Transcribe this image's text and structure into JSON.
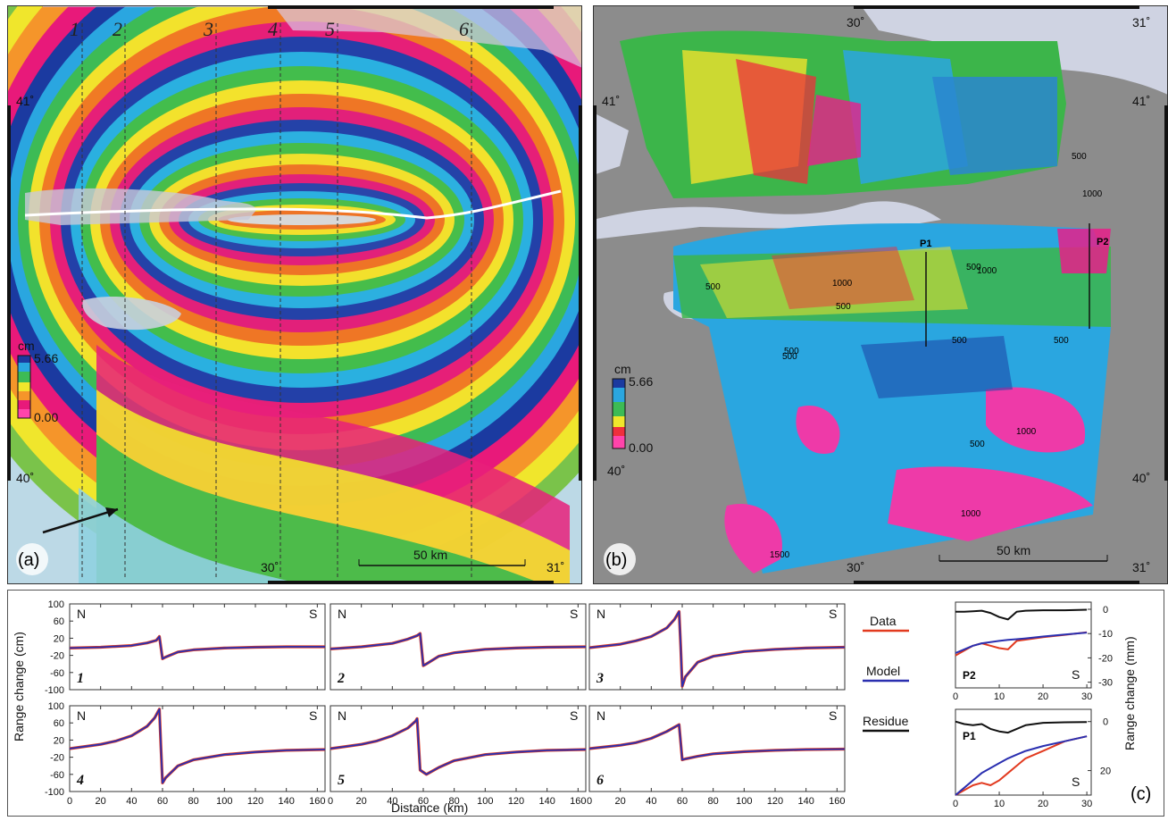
{
  "panel_a": {
    "label": "(a)",
    "profile_lines": [
      "1",
      "2",
      "3",
      "4",
      "5",
      "6"
    ],
    "lat_labels": [
      "41˚",
      "40˚"
    ],
    "lon_labels": [
      "30˚",
      "31˚"
    ],
    "colorbar": {
      "unit": "cm",
      "max": "5.66",
      "min": "0.00"
    },
    "scale_bar": "50 km"
  },
  "panel_b": {
    "label": "(b)",
    "lat_labels": [
      "41˚",
      "41˚",
      "40˚",
      "40˚"
    ],
    "lon_labels": [
      "30˚",
      "31˚",
      "30˚",
      "31˚"
    ],
    "colorbar": {
      "unit": "cm",
      "max": "5.66",
      "min": "0.00"
    },
    "scale_bar": "50 km",
    "profiles": [
      "P1",
      "P2"
    ],
    "contours": [
      "500",
      "1000",
      "500",
      "500",
      "1000",
      "500",
      "500",
      "1000",
      "500",
      "500",
      "1000",
      "500",
      "1000",
      "1500",
      "500"
    ]
  },
  "panel_c": {
    "label": "(c)",
    "ylabel": "Range change  (cm)",
    "xlabel": "Distance (km)",
    "right_ylabel": "Range change  (mm)",
    "legend": {
      "data": "Data",
      "model": "Model",
      "residue": "Residue"
    },
    "colors": {
      "data": "#e23a1f",
      "model": "#2a2fb0",
      "residue": "#111111"
    }
  },
  "chart_data": [
    {
      "type": "line",
      "panel": "1",
      "x": [
        0,
        20,
        40,
        50,
        56,
        58,
        60,
        62,
        70,
        80,
        100,
        120,
        140,
        165
      ],
      "series": [
        {
          "name": "Data",
          "values": [
            -3,
            -1,
            3,
            9,
            15,
            24,
            -28,
            -24,
            -12,
            -7,
            -3,
            -1,
            0,
            0
          ]
        },
        {
          "name": "Model",
          "values": [
            -3,
            -1,
            3,
            9,
            15,
            24,
            -28,
            -24,
            -12,
            -7,
            -3,
            -1,
            0,
            0
          ]
        }
      ],
      "ylim": [
        -100,
        100
      ],
      "xlim": [
        0,
        165
      ],
      "end_labels": [
        "N",
        "S"
      ]
    },
    {
      "type": "line",
      "panel": "2",
      "x": [
        0,
        20,
        40,
        50,
        56,
        58,
        60,
        62,
        70,
        80,
        100,
        120,
        140,
        165
      ],
      "series": [
        {
          "name": "Data",
          "values": [
            -5,
            0,
            8,
            18,
            26,
            31,
            -44,
            -40,
            -22,
            -14,
            -6,
            -3,
            -1,
            0
          ]
        },
        {
          "name": "Model",
          "values": [
            -5,
            0,
            8,
            18,
            26,
            31,
            -44,
            -40,
            -22,
            -14,
            -6,
            -3,
            -1,
            0
          ]
        }
      ],
      "ylim": [
        -100,
        100
      ],
      "xlim": [
        0,
        165
      ],
      "end_labels": [
        "N",
        "S"
      ]
    },
    {
      "type": "line",
      "panel": "3",
      "x": [
        0,
        20,
        30,
        40,
        50,
        55,
        58,
        59,
        60,
        62,
        70,
        80,
        100,
        120,
        140,
        165
      ],
      "series": [
        {
          "name": "Data",
          "values": [
            -2,
            6,
            14,
            24,
            44,
            64,
            82,
            0,
            -92,
            -70,
            -36,
            -22,
            -11,
            -6,
            -3,
            -1
          ]
        },
        {
          "name": "Model",
          "values": [
            -2,
            6,
            14,
            24,
            44,
            64,
            82,
            0,
            -92,
            -70,
            -36,
            -22,
            -11,
            -6,
            -3,
            -1
          ]
        }
      ],
      "ylim": [
        -100,
        100
      ],
      "xlim": [
        0,
        165
      ],
      "end_labels": [
        "N",
        "S"
      ]
    },
    {
      "type": "line",
      "panel": "4",
      "x": [
        0,
        20,
        30,
        40,
        50,
        55,
        58,
        59,
        60,
        62,
        70,
        80,
        100,
        120,
        140,
        165
      ],
      "series": [
        {
          "name": "Data",
          "values": [
            0,
            10,
            18,
            30,
            52,
            72,
            92,
            0,
            -80,
            -68,
            -40,
            -26,
            -14,
            -8,
            -4,
            -2
          ]
        },
        {
          "name": "Model",
          "values": [
            0,
            10,
            18,
            30,
            52,
            72,
            92,
            0,
            -80,
            -68,
            -40,
            -26,
            -14,
            -8,
            -4,
            -2
          ]
        }
      ],
      "ylim": [
        -100,
        100
      ],
      "xlim": [
        0,
        165
      ],
      "end_labels": [
        "N",
        "S"
      ]
    },
    {
      "type": "line",
      "panel": "5",
      "x": [
        0,
        20,
        30,
        40,
        50,
        55,
        56,
        58,
        62,
        70,
        80,
        100,
        120,
        140,
        165
      ],
      "series": [
        {
          "name": "Data",
          "values": [
            0,
            10,
            18,
            30,
            48,
            64,
            70,
            -50,
            -60,
            -44,
            -28,
            -14,
            -8,
            -4,
            -2
          ]
        },
        {
          "name": "Model",
          "values": [
            0,
            10,
            18,
            30,
            48,
            64,
            70,
            -50,
            -60,
            -44,
            -28,
            -14,
            -8,
            -4,
            -2
          ]
        }
      ],
      "ylim": [
        -100,
        100
      ],
      "xlim": [
        0,
        165
      ],
      "end_labels": [
        "N",
        "S"
      ]
    },
    {
      "type": "line",
      "panel": "6",
      "x": [
        0,
        20,
        30,
        40,
        50,
        56,
        58,
        60,
        62,
        70,
        80,
        100,
        120,
        140,
        165
      ],
      "series": [
        {
          "name": "Data",
          "values": [
            0,
            8,
            14,
            24,
            40,
            52,
            56,
            -26,
            -24,
            -18,
            -12,
            -7,
            -4,
            -2,
            -1
          ]
        },
        {
          "name": "Model",
          "values": [
            0,
            8,
            14,
            24,
            40,
            52,
            56,
            -26,
            -24,
            -18,
            -12,
            -7,
            -4,
            -2,
            -1
          ]
        }
      ],
      "ylim": [
        -100,
        100
      ],
      "xlim": [
        0,
        165
      ],
      "end_labels": [
        "N",
        "S"
      ]
    },
    {
      "type": "line",
      "panel": "P2",
      "x": [
        0,
        2,
        4,
        6,
        8,
        10,
        12,
        14,
        16,
        20,
        25,
        30
      ],
      "series": [
        {
          "name": "Data",
          "values": [
            -19,
            -17,
            -15,
            -14,
            -15,
            -16,
            -16.5,
            -13,
            -12.5,
            -11.5,
            -10.5,
            -9.5
          ]
        },
        {
          "name": "Model",
          "values": [
            -18,
            -16.5,
            -15,
            -14,
            -13.5,
            -13,
            -12.6,
            -12.3,
            -12,
            -11.2,
            -10.4,
            -9.6
          ]
        },
        {
          "name": "Residue",
          "values": [
            -1,
            -1,
            -0.8,
            -0.6,
            -1.5,
            -3.2,
            -4.2,
            -1,
            -0.6,
            -0.4,
            -0.4,
            -0.2
          ]
        }
      ],
      "xlim": [
        0,
        31
      ],
      "ylim": [
        -30,
        0
      ],
      "end_labels": [
        "S"
      ]
    },
    {
      "type": "line",
      "panel": "P1",
      "x": [
        0,
        2,
        4,
        6,
        8,
        10,
        12,
        14,
        16,
        20,
        25,
        30
      ],
      "series": [
        {
          "name": "Data",
          "values": [
            30,
            28,
            26,
            25,
            26,
            24,
            21,
            18,
            15,
            12,
            8,
            6
          ]
        },
        {
          "name": "Model",
          "values": [
            30,
            27,
            24,
            21,
            19,
            17,
            15,
            13.5,
            12,
            10,
            8,
            6
          ]
        },
        {
          "name": "Residue",
          "values": [
            0,
            1,
            1.5,
            1,
            3,
            4,
            4.5,
            3,
            1.5,
            0.5,
            0.3,
            0.2
          ]
        }
      ],
      "xlim": [
        0,
        31
      ],
      "ylim": [
        -5,
        30
      ],
      "end_labels": [
        "S"
      ]
    }
  ]
}
